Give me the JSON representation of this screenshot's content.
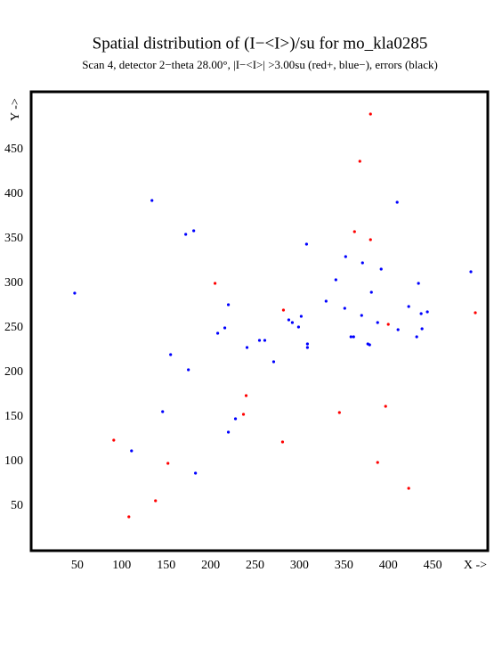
{
  "chart_data": {
    "type": "scatter",
    "title": "Spatial distribution of (I−<I>)/su for mo_kla0285",
    "subtitle": "Scan  4, detector 2−theta  28.00°, |I−<I>| >3.00su (red+, blue−), errors (black)",
    "x_label": "X ->",
    "y_label": "Y ->",
    "xlim": [
      -2,
      512
    ],
    "ylim": [
      0,
      515
    ],
    "xticks": [
      50,
      100,
      150,
      200,
      250,
      300,
      350,
      400,
      450
    ],
    "yticks": [
      50,
      100,
      150,
      200,
      250,
      300,
      350,
      400,
      450
    ],
    "grid": false,
    "series": [
      {
        "color": "#ff0000",
        "x": [
          380,
          368,
          362,
          380,
          205,
          282,
          400,
          498,
          240,
          237,
          345,
          397,
          281,
          91,
          152,
          388,
          138,
          108,
          423
        ],
        "values": [
          490,
          437,
          358,
          349,
          300,
          270,
          254,
          267,
          174,
          153,
          155,
          162,
          122,
          124,
          98,
          99,
          56,
          38,
          70
        ]
      },
      {
        "color": "#0000ff",
        "x": [
          134,
          410,
          181,
          172,
          308,
          352,
          371,
          392,
          493,
          47,
          434,
          381,
          341,
          220,
          330,
          351,
          423,
          444,
          437,
          302,
          370,
          288,
          292,
          388,
          216,
          299,
          411,
          438,
          208,
          358,
          432,
          361,
          255,
          261,
          377,
          379,
          309,
          309,
          241,
          155,
          271,
          175,
          146,
          228,
          220,
          111,
          183
        ],
        "values": [
          393,
          391,
          359,
          355,
          344,
          330,
          323,
          316,
          313,
          289,
          300,
          290,
          304,
          276,
          280,
          272,
          274,
          268,
          266,
          263,
          264,
          259,
          256,
          256,
          250,
          251,
          248,
          249,
          244,
          240,
          240,
          240,
          236,
          236,
          232,
          231,
          232,
          228,
          228,
          220,
          212,
          203,
          156,
          148,
          133,
          112,
          87
        ]
      }
    ]
  }
}
